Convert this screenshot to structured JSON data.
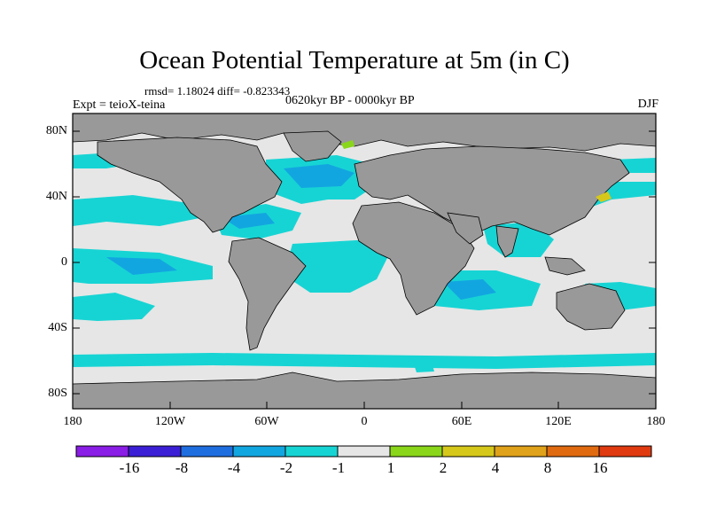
{
  "title": "Ocean Potential Temperature at 5m (in C)",
  "stats": "rmsd= 1.18024 diff= -0.823343",
  "experiment": "Expt = teioX-teina",
  "period": "0620kyr BP - 0000kyr BP",
  "season": "DJF",
  "y_axis_labels": [
    "80N",
    "40N",
    "0",
    "40S",
    "80S"
  ],
  "x_axis_labels": [
    "180",
    "120W",
    "60W",
    "0",
    "60E",
    "120E",
    "180"
  ],
  "colorbar": {
    "colors": [
      "#8a1de6",
      "#3b1fd6",
      "#1f6ee0",
      "#12a6e0",
      "#17d4d4",
      "#e6e6e6",
      "#8ad61a",
      "#d6c81a",
      "#e0a21a",
      "#e06a10",
      "#e03a10"
    ],
    "labels": [
      "-16",
      "-8",
      "-4",
      "-2",
      "-1",
      "1",
      "2",
      "4",
      "8",
      "16"
    ]
  },
  "colors": {
    "ocean_neutral": "#e6e6e6",
    "ocean_cool": "#17d4d4",
    "ocean_cooler": "#12a6e0",
    "land": "#999999",
    "warm": "#8ad61a",
    "warmer": "#d6c81a"
  }
}
